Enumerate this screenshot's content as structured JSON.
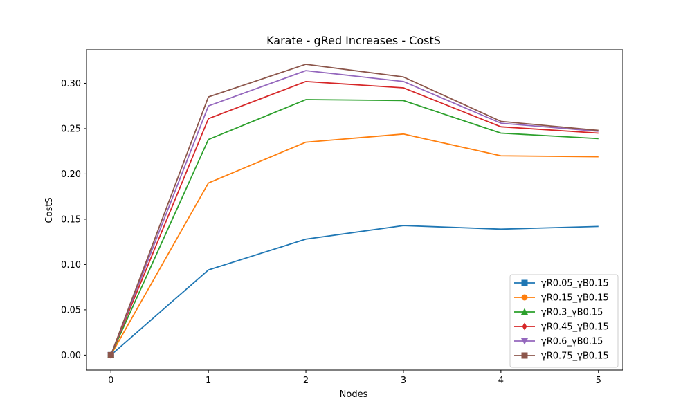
{
  "chart_data": {
    "type": "line",
    "title": "Karate - gRed Increases - CostS",
    "xlabel": "Nodes",
    "ylabel": "CostS",
    "xlim": [
      -0.25,
      5.25
    ],
    "ylim": [
      -0.0165,
      0.337
    ],
    "x": [
      0,
      1,
      2,
      3,
      4,
      5
    ],
    "xticks": [
      "0",
      "1",
      "2",
      "3",
      "4",
      "5"
    ],
    "yticks": [
      0.0,
      0.05,
      0.1,
      0.15,
      0.2,
      0.25,
      0.3
    ],
    "ytick_labels": [
      "0.00",
      "0.05",
      "0.10",
      "0.15",
      "0.20",
      "0.25",
      "0.30"
    ],
    "grid": false,
    "legend_position": "lower-right",
    "series": [
      {
        "name": "γR0.05_γB0.15",
        "color": "#1f77b4",
        "marker": "square",
        "values": [
          0.0,
          0.094,
          0.128,
          0.143,
          0.139,
          0.142
        ]
      },
      {
        "name": "γR0.15_γB0.15",
        "color": "#ff7f0e",
        "marker": "circle",
        "values": [
          0.0,
          0.19,
          0.235,
          0.244,
          0.22,
          0.219
        ]
      },
      {
        "name": "γR0.3_γB0.15",
        "color": "#2ca02c",
        "marker": "triangle-up",
        "values": [
          0.0,
          0.238,
          0.282,
          0.281,
          0.245,
          0.239
        ]
      },
      {
        "name": "γR0.45_γB0.15",
        "color": "#d62728",
        "marker": "diamond",
        "values": [
          0.0,
          0.261,
          0.302,
          0.295,
          0.252,
          0.245
        ]
      },
      {
        "name": "γR0.6_γB0.15",
        "color": "#9467bd",
        "marker": "triangle-down",
        "values": [
          0.0,
          0.275,
          0.314,
          0.302,
          0.256,
          0.247
        ]
      },
      {
        "name": "γR0.75_γB0.15",
        "color": "#8c564b",
        "marker": "square",
        "values": [
          0.0,
          0.285,
          0.321,
          0.307,
          0.258,
          0.248
        ]
      }
    ]
  }
}
